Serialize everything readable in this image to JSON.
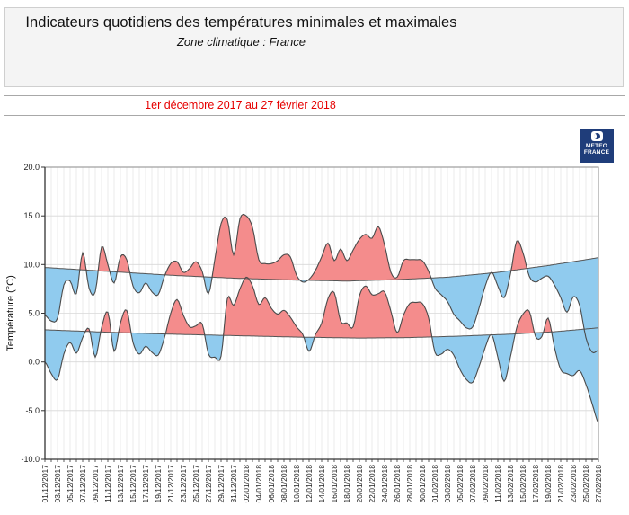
{
  "header": {
    "title": "Indicateurs quotidiens des températures minimales et maximales",
    "subtitle": "Zone climatique : France"
  },
  "period": {
    "text": "1er décembre 2017 au 27 février 2018",
    "color": "#e60000"
  },
  "logo": {
    "line1": "METEO",
    "line2": "FRANCE",
    "bg_color": "#1F3D7A"
  },
  "chart_data": {
    "type": "area",
    "title": "",
    "xlabel": "",
    "ylabel": "Température (°C)",
    "ylim": [
      -10,
      20
    ],
    "grid": true,
    "x_tick_day_step": 2,
    "days": 89,
    "y_ticks": [
      {
        "value": 20,
        "label": "20.0"
      },
      {
        "value": 15,
        "label": "15.0"
      },
      {
        "value": 10,
        "label": "10.0"
      },
      {
        "value": 5,
        "label": "5.0"
      },
      {
        "value": 0,
        "label": "0.0"
      },
      {
        "value": -5,
        "label": "-5.0"
      },
      {
        "value": -10,
        "label": "-10.0"
      }
    ],
    "x_tick_labels": [
      "01/12/2017",
      "03/12/2017",
      "05/12/2017",
      "07/12/2017",
      "09/12/2017",
      "11/12/2017",
      "13/12/2017",
      "15/12/2017",
      "17/12/2017",
      "19/12/2017",
      "21/12/2017",
      "23/12/2017",
      "25/12/2017",
      "27/12/2017",
      "29/12/2017",
      "31/12/2017",
      "02/01/2018",
      "04/01/2018",
      "06/01/2018",
      "08/01/2018",
      "10/01/2018",
      "12/01/2018",
      "14/01/2018",
      "16/01/2018",
      "18/01/2018",
      "20/01/2018",
      "22/01/2018",
      "24/01/2018",
      "26/01/2018",
      "28/01/2018",
      "30/01/2018",
      "01/02/2018",
      "03/02/2018",
      "05/02/2018",
      "07/02/2018",
      "09/02/2018",
      "11/02/2018",
      "13/02/2018",
      "15/02/2018",
      "17/02/2018",
      "19/02/2018",
      "21/02/2018",
      "23/02/2018",
      "25/02/2018",
      "27/02/2018"
    ],
    "tmax": [
      4.8,
      4.2,
      4.5,
      7.9,
      8.3,
      7.0,
      11.2,
      7.6,
      7.2,
      11.8,
      10.0,
      8.1,
      10.8,
      10.5,
      7.8,
      7.1,
      8.1,
      7.2,
      6.9,
      8.8,
      10.1,
      10.3,
      9.2,
      9.6,
      10.3,
      9.3,
      7.0,
      10.5,
      14.2,
      14.6,
      11.0,
      14.7,
      15.0,
      13.8,
      10.5,
      10.1,
      10.1,
      10.4,
      11.0,
      10.8,
      8.9,
      8.2,
      8.5,
      9.4,
      10.8,
      12.2,
      10.4,
      11.6,
      10.4,
      11.5,
      12.6,
      13.1,
      12.7,
      13.9,
      12.0,
      9.2,
      8.7,
      10.4,
      10.5,
      10.5,
      10.4,
      9.3,
      7.6,
      6.9,
      6.2,
      4.9,
      4.2,
      3.5,
      3.6,
      5.5,
      7.8,
      9.2,
      7.8,
      6.6,
      9.0,
      12.4,
      11.2,
      8.8,
      8.2,
      8.6,
      8.8,
      7.9,
      6.6,
      5.1,
      6.7,
      5.8,
      2.5,
      1.0,
      1.2
    ],
    "tmin": [
      0.0,
      -1.2,
      -1.8,
      0.8,
      2.0,
      0.9,
      2.5,
      3.4,
      0.5,
      3.5,
      5.1,
      1.1,
      4.0,
      5.3,
      2.0,
      0.8,
      1.6,
      1.0,
      0.7,
      2.5,
      5.0,
      6.4,
      4.8,
      3.6,
      3.7,
      3.9,
      0.8,
      0.5,
      0.6,
      6.5,
      5.8,
      7.5,
      8.7,
      7.8,
      5.9,
      6.6,
      5.5,
      4.9,
      5.3,
      4.6,
      3.6,
      2.8,
      1.1,
      2.8,
      4.0,
      6.5,
      7.1,
      4.2,
      4.0,
      3.6,
      6.8,
      7.8,
      6.9,
      7.0,
      7.2,
      5.2,
      3.0,
      4.8,
      6.0,
      6.1,
      6.0,
      4.5,
      1.0,
      0.8,
      1.3,
      0.7,
      -0.8,
      -1.8,
      -2.1,
      -0.5,
      1.5,
      2.8,
      0.5,
      -2.0,
      0.5,
      3.5,
      4.9,
      5.2,
      2.6,
      2.6,
      4.5,
      1.5,
      -0.8,
      -1.2,
      -1.4,
      -0.9,
      -2.3,
      -4.3,
      -6.3
    ],
    "normal_max_points": [
      [
        0,
        9.7
      ],
      [
        10,
        9.3
      ],
      [
        20,
        8.9
      ],
      [
        30,
        8.6
      ],
      [
        40,
        8.4
      ],
      [
        48,
        8.3
      ],
      [
        56,
        8.45
      ],
      [
        64,
        8.7
      ],
      [
        72,
        9.2
      ],
      [
        80,
        9.9
      ],
      [
        88,
        10.7
      ]
    ],
    "normal_min_points": [
      [
        0,
        3.3
      ],
      [
        10,
        3.05
      ],
      [
        20,
        2.85
      ],
      [
        30,
        2.7
      ],
      [
        40,
        2.55
      ],
      [
        50,
        2.45
      ],
      [
        58,
        2.5
      ],
      [
        66,
        2.65
      ],
      [
        74,
        2.85
      ],
      [
        81,
        3.1
      ],
      [
        88,
        3.5
      ]
    ],
    "colors": {
      "above_normal": "#F48C8C",
      "below_normal": "#90CBEE",
      "curve_stroke": "#4a4a4a",
      "normal_stroke": "#555555",
      "grid_v": "#e3e3e3",
      "grid_h": "#d8d8d8",
      "axis": "#333333"
    },
    "legend_position": "none"
  }
}
